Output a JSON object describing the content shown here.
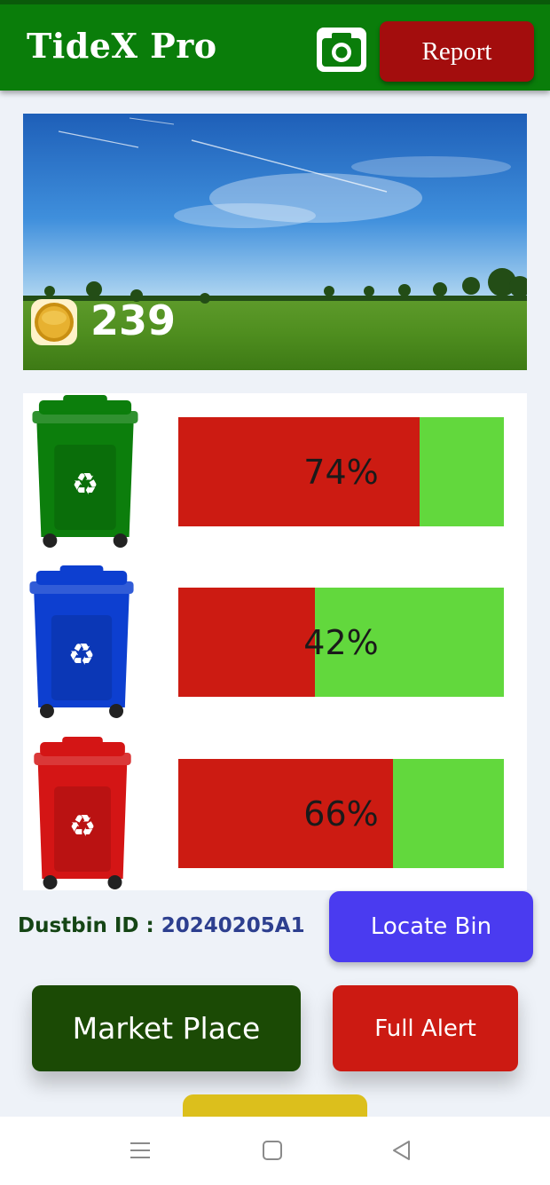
{
  "header": {
    "title": "TideX Pro",
    "camera_icon": "camera-icon",
    "report_label": "Report"
  },
  "banner": {
    "image": "landscape-photo",
    "coin_icon": "gold-coin-icon",
    "coin_count": "239"
  },
  "bins": [
    {
      "color": "#0c7e0c",
      "icon": "green-recycle-bin-icon",
      "fill_percent": 74,
      "label": "74%"
    },
    {
      "color": "#0d3fd0",
      "icon": "blue-recycle-bin-icon",
      "fill_percent": 42,
      "label": "42%"
    },
    {
      "color": "#d41515",
      "icon": "red-recycle-bin-icon",
      "fill_percent": 66,
      "label": "66%"
    }
  ],
  "dustbin": {
    "id_label": "Dustbin ID : ",
    "id_value": "20240205A1",
    "locate_label": "Locate Bin"
  },
  "actions": {
    "market_label": "Market Place",
    "alert_label": "Full Alert"
  },
  "colors": {
    "header": "#0a7d0a",
    "fill_used": "#cc1b12",
    "fill_free": "#62d83d",
    "locate": "#4a3bf0",
    "market": "#1b4a05",
    "alert": "#cc1a12"
  },
  "nav": {
    "items": [
      "menu-icon",
      "home-square-icon",
      "back-triangle-icon"
    ]
  }
}
